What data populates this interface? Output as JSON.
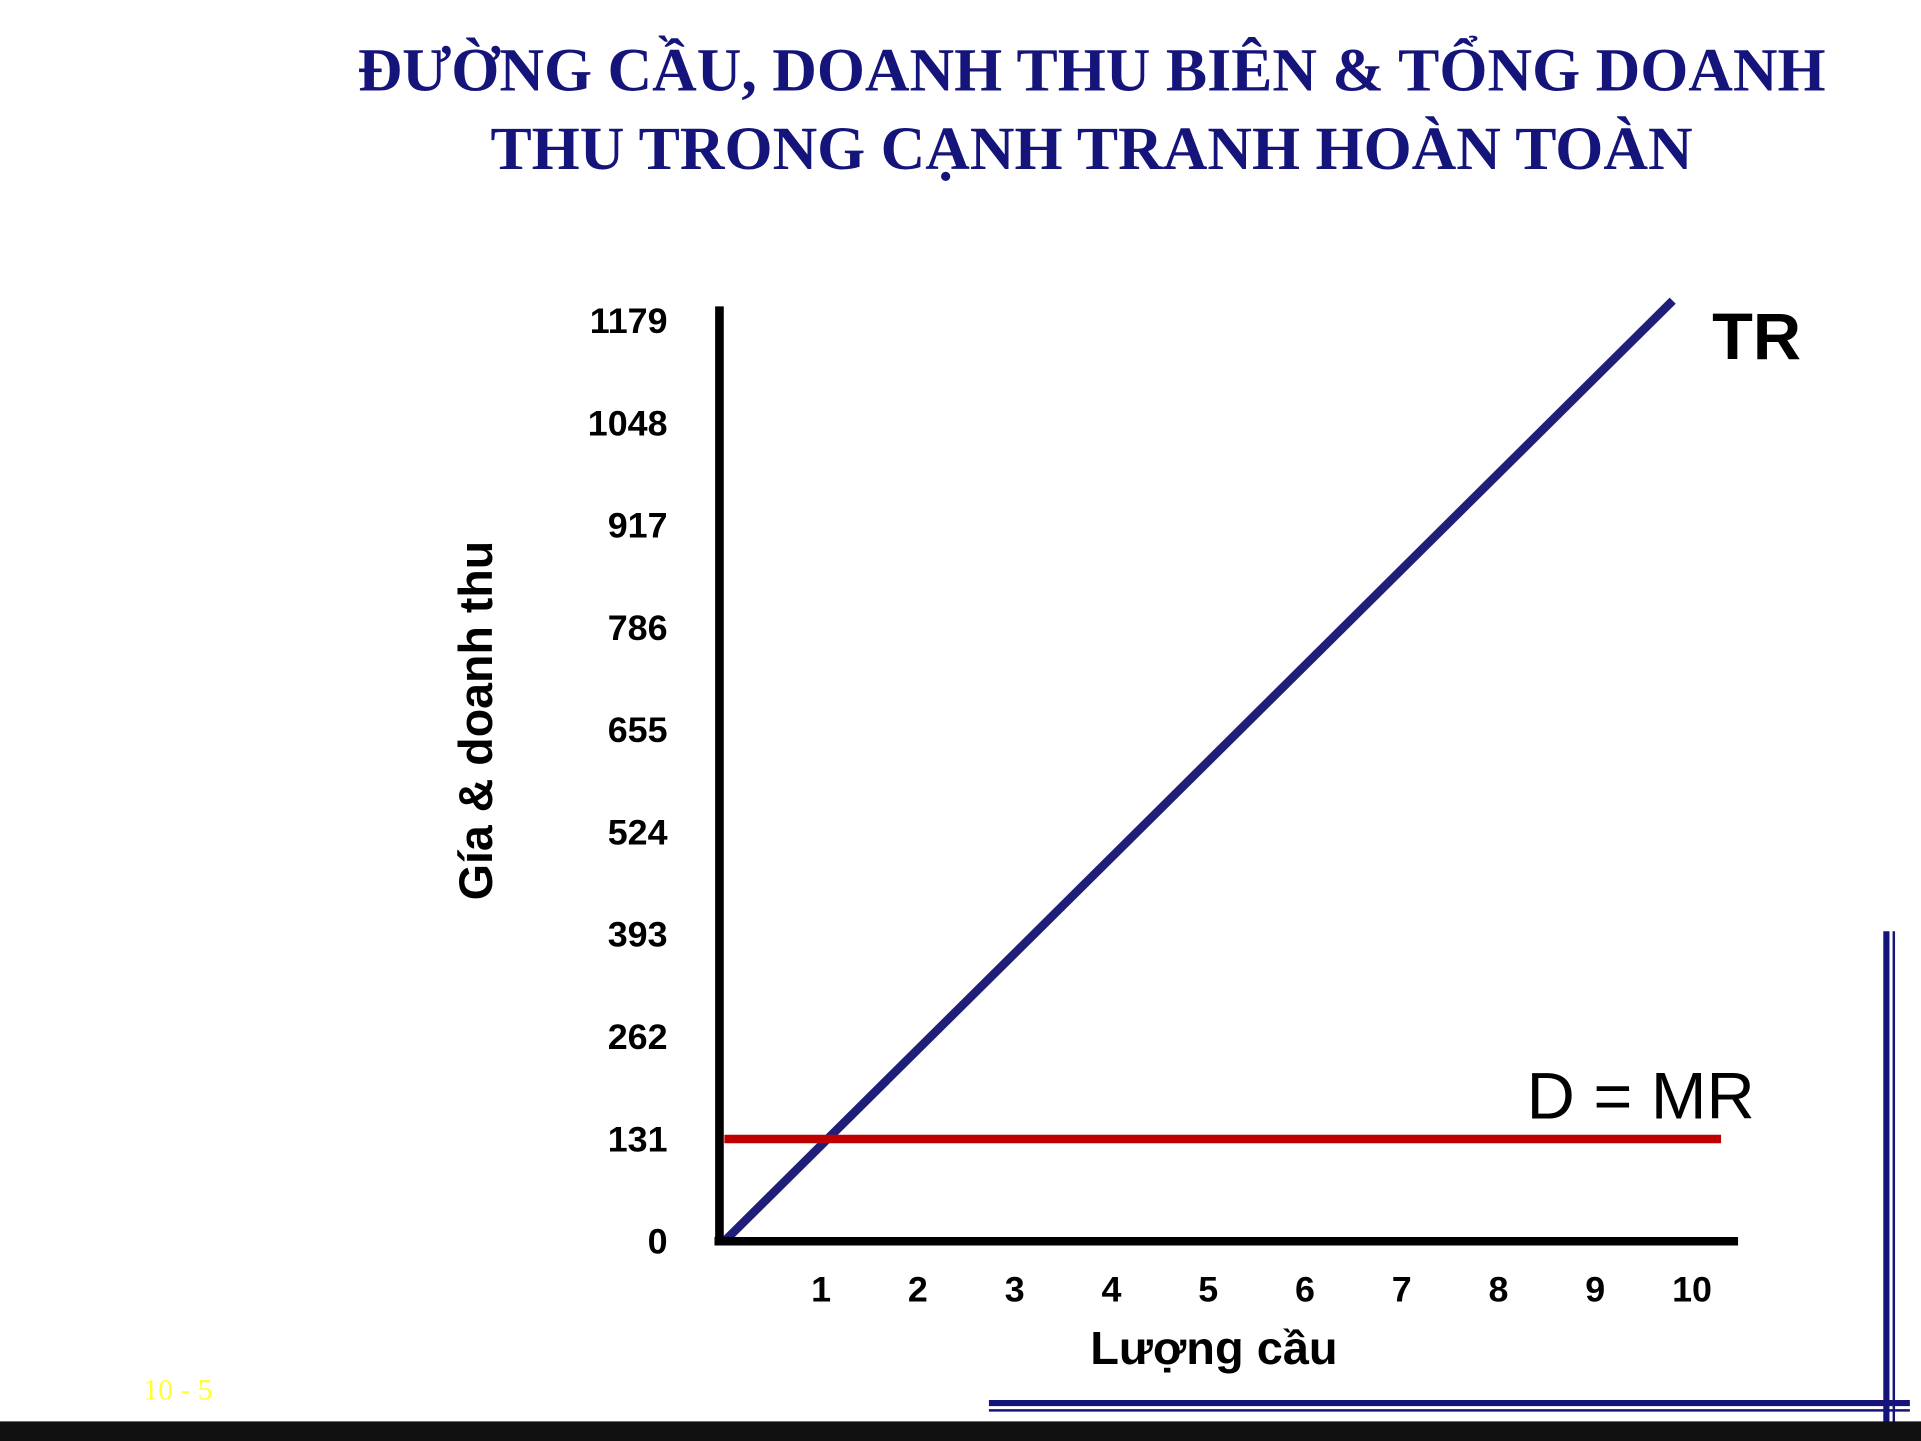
{
  "chart_data": {
    "type": "line",
    "title": [
      "ĐƯỜNG CẦU, DOANH THU BIÊN & TỔNG DOANH",
      "THU TRONG CẠNH TRANH HOÀN TOÀN"
    ],
    "x_label": "Lượng cầu",
    "y_label": "Gía & doanh thu",
    "series": [
      {
        "name": "TR",
        "color": "#1f1f7a",
        "x": [
          0,
          9.8
        ],
        "values": [
          0,
          1205
        ]
      },
      {
        "name": "D = MR",
        "color": "#c00000",
        "x": [
          0,
          10.3
        ],
        "values": [
          131,
          131
        ]
      }
    ],
    "xlim": [
      0,
      10.45
    ],
    "xticks": [
      1,
      2,
      3,
      4,
      5,
      6,
      7,
      8,
      9,
      10
    ],
    "ylim": [
      0,
      1215
    ],
    "yticks": [
      0,
      131,
      262,
      393,
      524,
      655,
      786,
      917,
      1048,
      1179
    ],
    "grid": false
  },
  "slide_number": "10 - 5"
}
